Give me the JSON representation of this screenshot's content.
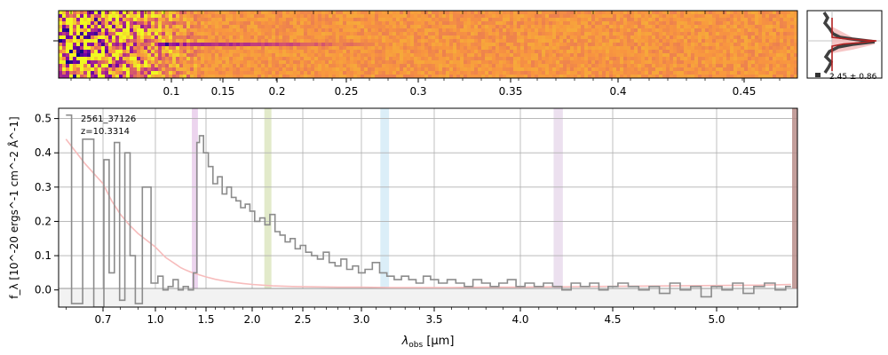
{
  "chart_data": [
    {
      "type": "heatmap",
      "panel": "2d-spectrum",
      "colormap": "plasma",
      "colors": {
        "low": "#0d0887",
        "mid": "#e16462",
        "high": "#f0f921",
        "bg": "#fca636"
      },
      "top_ticks": [
        "0.1",
        "0.15",
        "0.2",
        "0.25",
        "0.3",
        "0.35",
        "0.4",
        "0.45"
      ],
      "top_tick_values": [
        0.1,
        0.15,
        0.2,
        0.25,
        0.3,
        0.35,
        0.4,
        0.45
      ],
      "x_range_um": [
        0.58,
        5.38
      ],
      "trace_rows_fraction": 0.45,
      "trace_fade_um": 3.2
    },
    {
      "type": "line",
      "panel": "spatial-profile",
      "annotation": "2.45 ± 0.86",
      "colors": {
        "profile": "#404040",
        "model": "#b22222",
        "fill": "#f4b8b8"
      }
    },
    {
      "type": "line",
      "panel": "1d-spectrum",
      "object_id": "2561_37126",
      "redshift_label": "z=10.3314",
      "xlabel_main": "λ",
      "xlabel_sub": "obs",
      "xlabel_unit": " [μm]",
      "ylabel": "f_λ [10^-20 ergs^-1 cm^-2 Å^-1]",
      "xlim": [
        0.58,
        5.38
      ],
      "ylim": [
        -0.05,
        0.53
      ],
      "x_ticks": [
        0.7,
        1.0,
        1.5,
        2.0,
        2.5,
        3.0,
        3.5,
        4.0,
        4.5,
        5.0
      ],
      "x_tick_labels": [
        "0.7",
        "1.0",
        "1.5",
        "2.0",
        "2.5",
        "3.0",
        "3.5",
        "4.0",
        "4.5",
        "5.0"
      ],
      "y_ticks": [
        0.0,
        0.1,
        0.2,
        0.3,
        0.4,
        0.5
      ],
      "y_tick_labels": [
        "0.0",
        "0.1",
        "0.2",
        "0.3",
        "0.4",
        "0.5"
      ],
      "grid": true,
      "colors": {
        "flux": "#8c8c8c",
        "error": "#f7bcbc",
        "bands": [
          "#e5c6e8",
          "#d8e3b8",
          "#cfe8f5",
          "#e6d6ea"
        ],
        "edge": "#b98d8a"
      },
      "shaded_bands_um": [
        [
          1.36,
          1.42
        ],
        [
          2.12,
          2.19
        ],
        [
          3.13,
          3.19
        ],
        [
          4.18,
          4.23
        ]
      ],
      "series": [
        {
          "x": [
            0.6,
            0.63,
            0.66,
            0.69,
            0.72,
            0.75,
            0.78,
            0.81,
            0.84,
            0.87,
            0.9,
            0.95,
            1.0,
            1.05,
            1.1,
            1.15,
            1.2,
            1.25,
            1.3,
            1.35,
            1.4,
            1.42,
            1.45,
            1.5,
            1.55,
            1.6,
            1.65,
            1.7,
            1.75,
            1.8,
            1.85,
            1.9,
            1.95,
            2.0,
            2.05,
            2.1,
            2.15,
            2.2,
            2.25,
            2.3,
            2.35,
            2.4,
            2.45,
            2.5,
            2.55,
            2.6,
            2.65,
            2.7,
            2.75,
            2.8,
            2.85,
            2.9,
            2.95,
            3.0,
            3.05,
            3.1,
            3.15,
            3.2,
            3.25,
            3.3,
            3.35,
            3.4,
            3.45,
            3.5,
            3.55,
            3.6,
            3.65,
            3.7,
            3.75,
            3.8,
            3.85,
            3.9,
            3.95,
            4.0,
            4.05,
            4.1,
            4.15,
            4.2,
            4.25,
            4.3,
            4.35,
            4.4,
            4.45,
            4.5,
            4.55,
            4.6,
            4.65,
            4.7,
            4.75,
            4.8,
            4.85,
            4.9,
            4.95,
            5.0,
            5.05,
            5.1,
            5.15,
            5.2,
            5.25,
            5.3,
            5.35
          ],
          "values": [
            0.51,
            -0.04,
            0.44,
            -0.05,
            0.38,
            0.05,
            0.43,
            -0.03,
            0.4,
            0.1,
            -0.04,
            0.3,
            0.02,
            0.04,
            0.0,
            0.01,
            0.03,
            0.0,
            0.01,
            0.0,
            0.05,
            0.43,
            0.45,
            0.4,
            0.36,
            0.31,
            0.33,
            0.28,
            0.3,
            0.27,
            0.26,
            0.24,
            0.25,
            0.23,
            0.2,
            0.21,
            0.19,
            0.22,
            0.17,
            0.16,
            0.14,
            0.15,
            0.12,
            0.13,
            0.11,
            0.1,
            0.09,
            0.11,
            0.08,
            0.07,
            0.09,
            0.06,
            0.07,
            0.05,
            0.06,
            0.08,
            0.05,
            0.04,
            0.03,
            0.04,
            0.03,
            0.02,
            0.04,
            0.03,
            0.02,
            0.03,
            0.02,
            0.01,
            0.03,
            0.02,
            0.01,
            0.02,
            0.03,
            0.01,
            0.02,
            0.01,
            0.02,
            0.01,
            0.0,
            0.02,
            0.01,
            0.02,
            0.0,
            0.01,
            0.02,
            0.01,
            0.0,
            0.01,
            -0.01,
            0.02,
            0.0,
            0.01,
            -0.02,
            0.01,
            0.0,
            0.02,
            -0.01,
            0.01,
            0.02,
            0.0,
            0.01
          ]
        },
        {
          "x": [
            0.6,
            0.65,
            0.7,
            0.75,
            0.8,
            0.85,
            0.9,
            0.95,
            1.0,
            1.05,
            1.1,
            1.15,
            1.2,
            1.25,
            1.3,
            1.35,
            1.4,
            1.5,
            1.6,
            1.7,
            1.8,
            1.9,
            2.0,
            2.2,
            2.4,
            2.6,
            2.8,
            3.0,
            3.2,
            3.4,
            3.6,
            3.8,
            4.0,
            4.2,
            4.4,
            4.6,
            4.8,
            5.0,
            5.2,
            5.35
          ],
          "values": [
            0.44,
            0.37,
            0.31,
            0.26,
            0.22,
            0.19,
            0.165,
            0.145,
            0.125,
            0.11,
            0.095,
            0.085,
            0.075,
            0.065,
            0.058,
            0.052,
            0.047,
            0.038,
            0.031,
            0.026,
            0.022,
            0.019,
            0.016,
            0.012,
            0.01,
            0.009,
            0.008,
            0.008,
            0.007,
            0.007,
            0.007,
            0.008,
            0.008,
            0.009,
            0.01,
            0.011,
            0.012,
            0.013,
            0.014,
            0.016
          ]
        }
      ]
    }
  ]
}
